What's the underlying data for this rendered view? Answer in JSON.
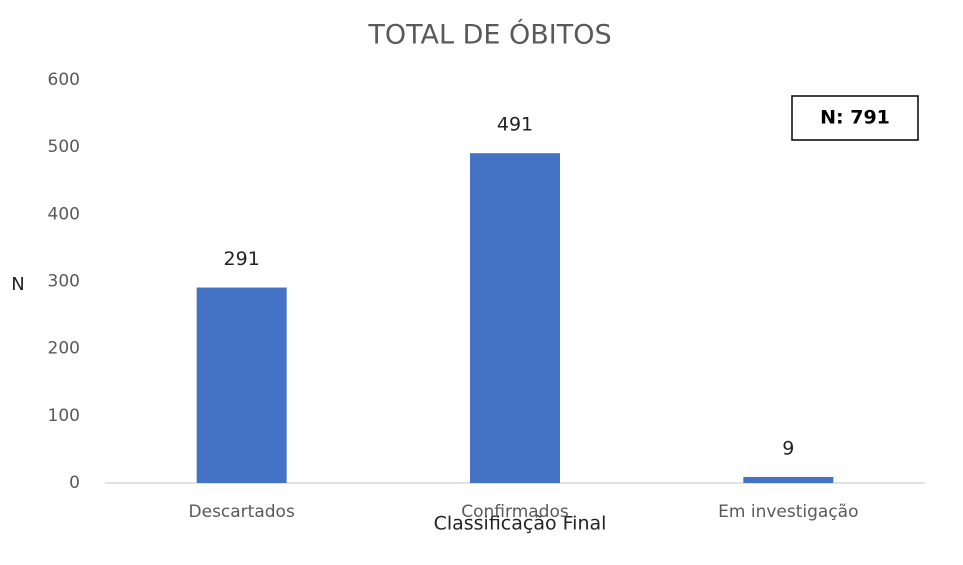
{
  "chart_data": {
    "type": "bar",
    "title": "TOTAL DE ÓBITOS",
    "x_label": "Classificação Final",
    "y_label": "N",
    "annotation": "N: 791",
    "categories": [
      "Descartados",
      "Confirmados",
      "Em investigação"
    ],
    "values": [
      291,
      491,
      9
    ],
    "color": "#4472c4",
    "ylim": [
      0,
      600
    ],
    "yticks": [
      0,
      100,
      200,
      300,
      400,
      500,
      600
    ],
    "grid": false,
    "data_labels": true
  }
}
